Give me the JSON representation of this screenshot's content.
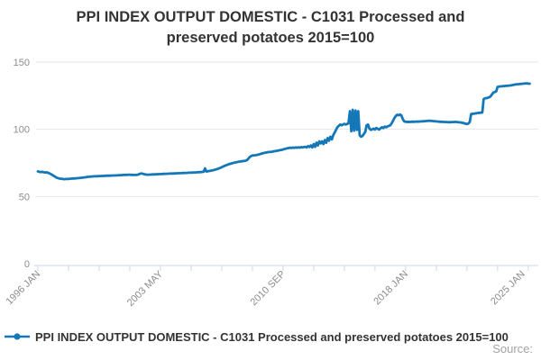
{
  "title": {
    "line1": "PPI INDEX OUTPUT DOMESTIC - C1031 Processed and",
    "line2": "preserved potatoes 2015=100"
  },
  "legend": {
    "label": "PPI INDEX OUTPUT DOMESTIC - C1031 Processed and preserved potatoes 2015=100"
  },
  "source_label": "Source:",
  "colors": {
    "series": "#1478b8",
    "grid": "#e6e6e6",
    "axis": "#ccd6eb",
    "axis_text": "#8c8c8c",
    "title_text": "#333333",
    "source_text": "#a3a3a3"
  },
  "chart_data": {
    "type": "line",
    "title": "PPI INDEX OUTPUT DOMESTIC - C1031 Processed and preserved potatoes 2015=100",
    "series_name": "PPI INDEX OUTPUT DOMESTIC - C1031 Processed and preserved potatoes 2015=100",
    "x_start": "1996-01",
    "frequency": "monthly",
    "x_tick_labels": [
      "1996 JAN",
      "2003 MAY",
      "2010 SEP",
      "2018 JAN",
      "2025 JAN"
    ],
    "x_tick_label_month_indices": [
      0,
      88,
      176,
      264,
      348
    ],
    "minor_tick_month_step": 22,
    "y_ticks": [
      0,
      50,
      100,
      150
    ],
    "ylim": [
      0,
      157
    ],
    "grid": "horizontal",
    "legend_position": "bottom-left",
    "values": [
      68.7,
      68.4,
      68.2,
      68.4,
      68.1,
      67.9,
      68.0,
      67.8,
      67.4,
      66.8,
      66.2,
      65.6,
      65.0,
      64.2,
      63.8,
      63.5,
      63.3,
      63.2,
      63.0,
      62.9,
      63.0,
      63.1,
      63.0,
      63.2,
      63.3,
      63.4,
      63.4,
      63.5,
      63.6,
      63.7,
      63.8,
      63.9,
      64.0,
      64.2,
      64.3,
      64.5,
      64.6,
      64.7,
      64.8,
      64.9,
      65.0,
      65.0,
      65.1,
      65.1,
      65.2,
      65.2,
      65.3,
      65.3,
      65.4,
      65.4,
      65.5,
      65.5,
      65.5,
      65.6,
      65.6,
      65.6,
      65.7,
      65.7,
      65.8,
      65.8,
      65.9,
      66.0,
      66.0,
      66.1,
      66.1,
      66.2,
      66.2,
      66.1,
      66.1,
      66.0,
      66.0,
      66.1,
      66.3,
      66.8,
      67.1,
      67.0,
      66.7,
      66.4,
      66.3,
      66.2,
      66.3,
      66.3,
      66.4,
      66.4,
      66.5,
      66.5,
      66.6,
      66.6,
      66.7,
      66.7,
      66.8,
      66.8,
      66.9,
      66.9,
      67.0,
      67.0,
      67.1,
      67.1,
      67.2,
      67.2,
      67.3,
      67.3,
      67.4,
      67.4,
      67.5,
      67.5,
      67.6,
      67.6,
      67.7,
      67.7,
      67.8,
      67.8,
      67.9,
      67.9,
      68.0,
      68.1,
      68.1,
      68.2,
      68.3,
      68.4,
      70.9,
      68.6,
      68.8,
      69.0,
      69.2,
      69.4,
      69.6,
      69.9,
      70.2,
      70.5,
      70.9,
      71.3,
      71.8,
      72.3,
      72.8,
      73.2,
      73.6,
      74.0,
      74.3,
      74.6,
      74.9,
      75.2,
      75.4,
      75.6,
      75.8,
      76.0,
      76.2,
      76.3,
      76.5,
      76.6,
      77.0,
      78.0,
      79.2,
      80.1,
      80.5,
      80.6,
      80.7,
      80.9,
      81.1,
      81.4,
      81.7,
      82.0,
      82.3,
      82.6,
      82.8,
      83.0,
      83.1,
      83.2,
      83.3,
      83.5,
      83.7,
      83.9,
      84.1,
      84.3,
      84.5,
      84.7,
      85.0,
      85.3,
      85.6,
      85.9,
      86.0,
      86.3,
      86.1,
      86.4,
      86.2,
      86.5,
      86.3,
      86.6,
      86.4,
      86.7,
      86.5,
      86.8,
      87.0,
      86.5,
      87.5,
      86.8,
      88.0,
      86.5,
      89.0,
      87.0,
      90.0,
      88.0,
      91.0,
      89.5,
      91.0,
      89.0,
      92.0,
      90.0,
      93.5,
      91.5,
      94.5,
      92.5,
      95.5,
      97.5,
      99.5,
      101.5,
      102.5,
      103.5,
      103.0,
      103.5,
      104.0,
      103.5,
      104.0,
      104.5,
      113.5,
      98.5,
      114.5,
      99.0,
      114.0,
      99.5,
      113.5,
      95.5,
      94.5,
      95.0,
      96.5,
      98.0,
      103.0,
      103.5,
      100.5,
      99.5,
      100.0,
      100.5,
      99.8,
      101.0,
      100.3,
      99.8,
      100.8,
      101.5,
      101.0,
      102.0,
      101.5,
      102.2,
      102.5,
      103.0,
      104.5,
      106.5,
      108.5,
      110.0,
      110.8,
      110.4,
      111.0,
      110.2,
      107.5,
      105.9,
      105.6,
      105.5,
      105.6,
      105.5,
      105.6,
      105.7,
      105.6,
      105.7,
      105.8,
      105.7,
      105.8,
      105.9,
      105.9,
      106.0,
      106.1,
      106.2,
      106.3,
      106.4,
      106.3,
      106.2,
      106.1,
      106.0,
      105.9,
      105.8,
      105.7,
      105.6,
      105.6,
      105.5,
      105.5,
      105.4,
      105.4,
      105.3,
      105.3,
      105.4,
      105.4,
      105.5,
      105.5,
      105.4,
      105.3,
      105.2,
      105.0,
      104.8,
      104.5,
      104.2,
      103.9,
      104.2,
      105.5,
      111.3,
      111.5,
      111.6,
      111.8,
      112.0,
      112.2,
      112.3,
      112.4,
      112.5,
      122.5,
      123.0,
      123.2,
      123.5,
      123.8,
      124.5,
      126.0,
      127.3,
      127.8,
      128.2,
      131.5,
      131.8,
      131.9,
      132.0,
      132.1,
      132.2,
      132.3,
      132.4,
      132.5,
      132.6,
      132.8,
      133.0,
      133.2,
      133.4,
      133.5,
      133.6,
      133.7,
      133.8,
      133.9,
      134.0,
      134.1,
      134.2,
      134.0,
      133.9
    ]
  }
}
